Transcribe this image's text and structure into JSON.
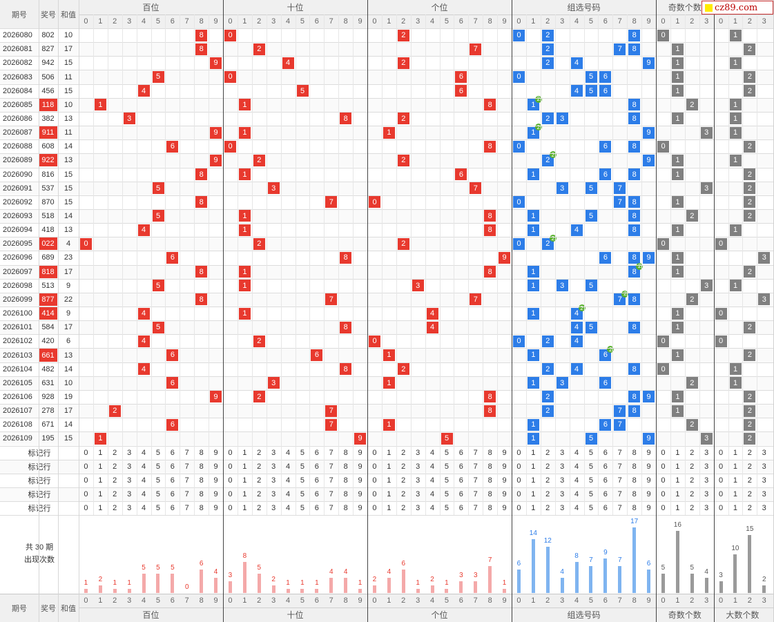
{
  "logo_text": "cz89.com",
  "header": {
    "col_period": "期号",
    "col_prize": "奖号",
    "col_sum": "和值",
    "groups": [
      "百位",
      "十位",
      "个位",
      "组选号码",
      "奇数个数"
    ],
    "footer_groups": [
      "百位",
      "十位",
      "个位",
      "组选号码",
      "奇数个数",
      "大数个数"
    ]
  },
  "colors": {
    "position_ball": "#e8392e",
    "group_ball": "#2d7de8",
    "count_ball": "#808080",
    "repeat_badge": "#59b12f",
    "prize_highlight": "#e8392e",
    "bar_red": "#f4a9a9",
    "bar_blue": "#7fb4f0",
    "bar_gray": "#9a9a9a"
  },
  "rows": [
    {
      "period": "2026080",
      "prize": "802",
      "sum": "10",
      "highlight": false
    },
    {
      "period": "2026081",
      "prize": "827",
      "sum": "17",
      "highlight": false
    },
    {
      "period": "2026082",
      "prize": "942",
      "sum": "15",
      "highlight": false
    },
    {
      "period": "2026083",
      "prize": "506",
      "sum": "11",
      "highlight": false
    },
    {
      "period": "2026084",
      "prize": "456",
      "sum": "15",
      "highlight": false
    },
    {
      "period": "2026085",
      "prize": "118",
      "sum": "10",
      "highlight": true
    },
    {
      "period": "2026086",
      "prize": "382",
      "sum": "13",
      "highlight": false
    },
    {
      "period": "2026087",
      "prize": "911",
      "sum": "11",
      "highlight": true
    },
    {
      "period": "2026088",
      "prize": "608",
      "sum": "14",
      "highlight": false
    },
    {
      "period": "2026089",
      "prize": "922",
      "sum": "13",
      "highlight": true
    },
    {
      "period": "2026090",
      "prize": "816",
      "sum": "15",
      "highlight": false
    },
    {
      "period": "2026091",
      "prize": "537",
      "sum": "15",
      "highlight": false
    },
    {
      "period": "2026092",
      "prize": "870",
      "sum": "15",
      "highlight": false
    },
    {
      "period": "2026093",
      "prize": "518",
      "sum": "14",
      "highlight": false
    },
    {
      "period": "2026094",
      "prize": "418",
      "sum": "13",
      "highlight": false
    },
    {
      "period": "2026095",
      "prize": "022",
      "sum": "4",
      "highlight": true
    },
    {
      "period": "2026096",
      "prize": "689",
      "sum": "23",
      "highlight": false
    },
    {
      "period": "2026097",
      "prize": "818",
      "sum": "17",
      "highlight": true
    },
    {
      "period": "2026098",
      "prize": "513",
      "sum": "9",
      "highlight": false
    },
    {
      "period": "2026099",
      "prize": "877",
      "sum": "22",
      "highlight": true
    },
    {
      "period": "2026100",
      "prize": "414",
      "sum": "9",
      "highlight": true
    },
    {
      "period": "2026101",
      "prize": "584",
      "sum": "17",
      "highlight": false
    },
    {
      "period": "2026102",
      "prize": "420",
      "sum": "6",
      "highlight": false
    },
    {
      "period": "2026103",
      "prize": "661",
      "sum": "13",
      "highlight": true
    },
    {
      "period": "2026104",
      "prize": "482",
      "sum": "14",
      "highlight": false
    },
    {
      "period": "2026105",
      "prize": "631",
      "sum": "10",
      "highlight": false
    },
    {
      "period": "2026106",
      "prize": "928",
      "sum": "19",
      "highlight": false
    },
    {
      "period": "2026107",
      "prize": "278",
      "sum": "17",
      "highlight": false
    },
    {
      "period": "2026108",
      "prize": "671",
      "sum": "14",
      "highlight": false
    },
    {
      "period": "2026109",
      "prize": "195",
      "sum": "15",
      "highlight": false
    }
  ],
  "marker_rows": [
    "标记行",
    "标记行",
    "标记行",
    "标记行",
    "标记行"
  ],
  "stats_label": [
    "共 30 期",
    "出现次数"
  ],
  "stats": {
    "hundreds": [
      1,
      2,
      1,
      1,
      5,
      5,
      5,
      0,
      6,
      4
    ],
    "tens": [
      3,
      8,
      5,
      2,
      1,
      1,
      1,
      4,
      4,
      1
    ],
    "units": [
      2,
      4,
      6,
      1,
      2,
      1,
      3,
      3,
      7,
      1
    ],
    "group": [
      6,
      14,
      12,
      4,
      8,
      7,
      9,
      7,
      17,
      6
    ],
    "odd_count": [
      5,
      16,
      5,
      4
    ],
    "big_count": [
      3,
      10,
      15,
      2
    ]
  }
}
